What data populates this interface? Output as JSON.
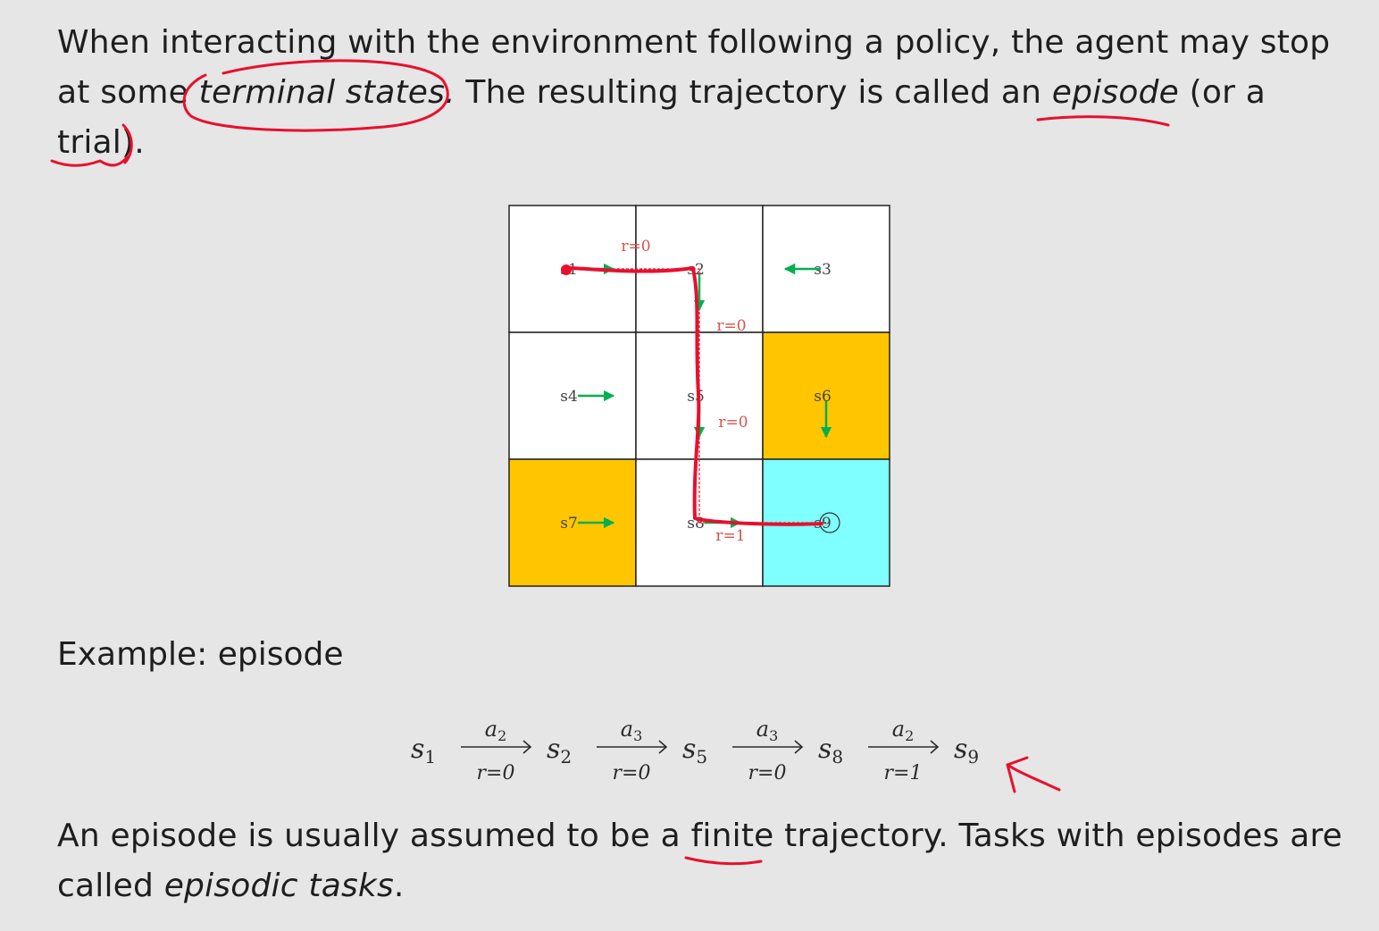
{
  "intro": {
    "part1": "When interacting with the environment following a policy, the agent may stop at some ",
    "terminal_states": "terminal states.",
    "part2": " The resulting trajectory is called an ",
    "episode": "episode",
    "part3": " (or a trial)."
  },
  "grid": {
    "cells": [
      {
        "label": "s1",
        "color": "#ffffff"
      },
      {
        "label": "s2",
        "color": "#ffffff"
      },
      {
        "label": "s3",
        "color": "#ffffff"
      },
      {
        "label": "s4",
        "color": "#ffffff"
      },
      {
        "label": "s5",
        "color": "#ffffff"
      },
      {
        "label": "s6",
        "color": "#ffc600"
      },
      {
        "label": "s7",
        "color": "#ffc600"
      },
      {
        "label": "s8",
        "color": "#ffffff"
      },
      {
        "label": "s9",
        "color": "#7fffff"
      }
    ],
    "arrows": [
      {
        "cell": "s1",
        "direction": "right"
      },
      {
        "cell": "s2",
        "direction": "down"
      },
      {
        "cell": "s3",
        "direction": "left"
      },
      {
        "cell": "s4",
        "direction": "right"
      },
      {
        "cell": "s5",
        "direction": "down"
      },
      {
        "cell": "s6",
        "direction": "down"
      },
      {
        "cell": "s7",
        "direction": "right"
      },
      {
        "cell": "s8",
        "direction": "right"
      }
    ],
    "rewards": [
      "r=0",
      "r=0",
      "r=0",
      "r=1"
    ],
    "arrow_color": "#00b050",
    "path_color": "#e8102e"
  },
  "example_label": "Example: episode",
  "episode": {
    "states": [
      {
        "base": "s",
        "sub": "1"
      },
      {
        "base": "s",
        "sub": "2"
      },
      {
        "base": "s",
        "sub": "5"
      },
      {
        "base": "s",
        "sub": "8"
      },
      {
        "base": "s",
        "sub": "9"
      }
    ],
    "transitions": [
      {
        "action": "a",
        "action_sub": "2",
        "reward": "r=0"
      },
      {
        "action": "a",
        "action_sub": "3",
        "reward": "r=0"
      },
      {
        "action": "a",
        "action_sub": "3",
        "reward": "r=0"
      },
      {
        "action": "a",
        "action_sub": "2",
        "reward": "r=1"
      }
    ]
  },
  "closing": {
    "part1": "An episode is usually assumed to be a ",
    "finite": "finite",
    "part2": " trajectory.  Tasks with episodes are called ",
    "episodic_tasks": "episodic tasks",
    "part3": "."
  }
}
